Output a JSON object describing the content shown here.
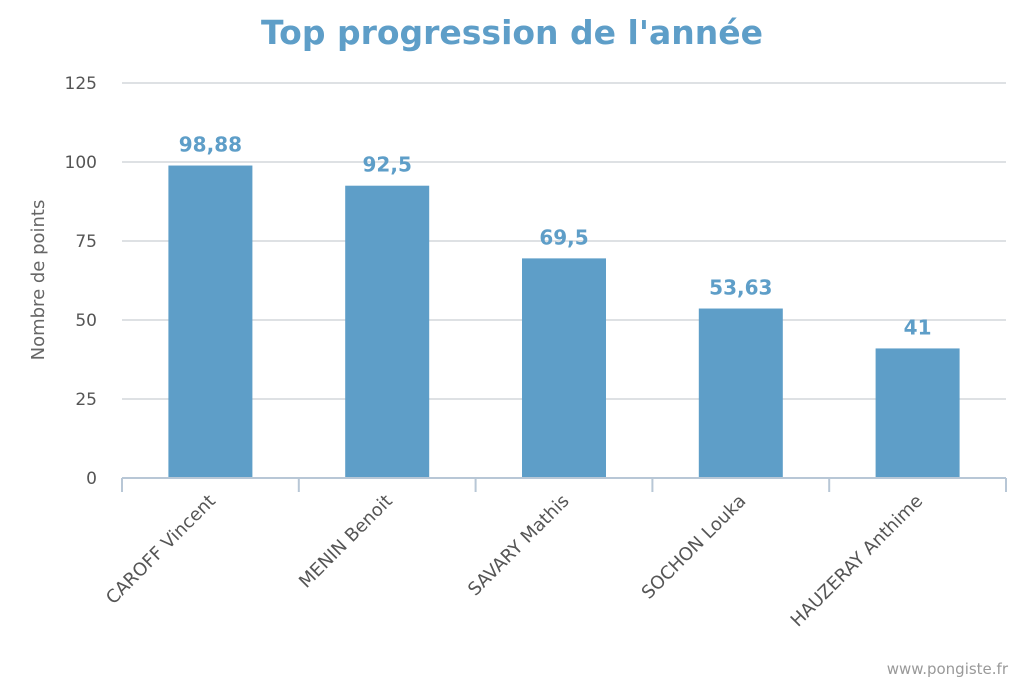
{
  "chart_data": {
    "type": "bar",
    "title": "Top progression de l'année",
    "ylabel": "Nombre de points",
    "xlabel": "",
    "categories": [
      "CAROFF Vincent",
      "MENIN Benoit",
      "SAVARY Mathis",
      "SOCHON Louka",
      "HAUZERAY Anthime"
    ],
    "values": [
      98.88,
      92.5,
      69.5,
      53.63,
      41
    ],
    "data_labels": [
      "98,88",
      "92,5",
      "69,5",
      "53,63",
      "41"
    ],
    "yticks": [
      0,
      25,
      50,
      75,
      100,
      125
    ],
    "ylim": [
      0,
      125
    ],
    "grid": true,
    "legend": "none",
    "colors": {
      "bar": "#5e9ec8",
      "title": "#5e9ec8",
      "data_label": "#5e9ec8"
    }
  },
  "credit": "www.pongiste.fr"
}
